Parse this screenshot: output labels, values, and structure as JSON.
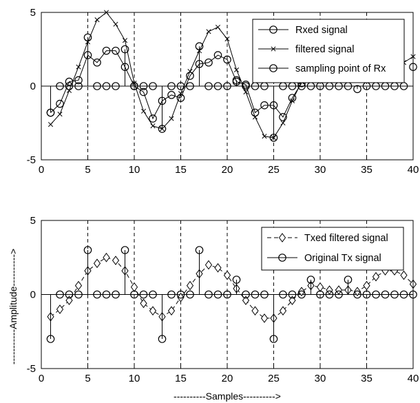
{
  "chart_data": [
    {
      "type": "line",
      "xlim": [
        0,
        40
      ],
      "ylim": [
        -5,
        5
      ],
      "xticks": [
        "0",
        "5",
        "10",
        "15",
        "20",
        "25",
        "30",
        "35",
        "40"
      ],
      "yticks": [
        "-5",
        "0",
        "5"
      ],
      "xlabel": "",
      "ylabel": "",
      "vertical_gridlines_at": [
        5,
        10,
        15,
        20,
        25,
        30,
        35
      ],
      "legend_position": "top-right",
      "series": [
        {
          "name": "Rxed signal",
          "style": "line-circle",
          "x": [
            1,
            2,
            3,
            4,
            5,
            6,
            7,
            8,
            9,
            10,
            11,
            12,
            13,
            14,
            15,
            16,
            17,
            18,
            19,
            20,
            21,
            22,
            23,
            24,
            25,
            26,
            27,
            28
          ],
          "y": [
            -1.8,
            -1.2,
            0.3,
            0.4,
            2.1,
            1.6,
            2.4,
            2.4,
            1.3,
            0.0,
            -0.4,
            -2.2,
            -1.0,
            -0.6,
            -0.8,
            0.7,
            1.5,
            1.6,
            2.1,
            1.8,
            0.3,
            0.1,
            -1.8,
            -1.3,
            -1.3,
            -2.1,
            -0.8,
            0.2
          ]
        },
        {
          "name": "filtered signal",
          "style": "line-x",
          "x": [
            1,
            2,
            3,
            4,
            5,
            6,
            7,
            8,
            9,
            10,
            11,
            12,
            13,
            14,
            15,
            16,
            17,
            18,
            19,
            20,
            21,
            22,
            23,
            24,
            25,
            26,
            27,
            28,
            29,
            30,
            31,
            32,
            33,
            34,
            35,
            36,
            37,
            38,
            39,
            40
          ],
          "y": [
            -2.6,
            -1.9,
            -0.3,
            1.3,
            3.0,
            4.5,
            5.0,
            4.2,
            3.1,
            0.2,
            -1.7,
            -2.7,
            -2.9,
            -2.2,
            -0.5,
            1.0,
            2.4,
            3.7,
            4.0,
            3.2,
            1.1,
            -0.4,
            -2.1,
            -3.4,
            -3.5,
            -2.5,
            -1.0,
            0.3,
            0.9,
            0.8,
            0.6,
            0.6,
            0.5,
            0.4,
            0.5,
            0.6,
            0.8,
            1.2,
            1.6,
            2.0
          ]
        },
        {
          "name": "sampling point of Rx",
          "style": "stem-circle",
          "x": [
            1,
            2,
            3,
            4,
            5,
            6,
            7,
            8,
            9,
            10,
            11,
            12,
            13,
            14,
            15,
            16,
            17,
            18,
            19,
            20,
            21,
            22,
            23,
            24,
            25,
            26,
            27,
            28,
            29,
            30,
            31,
            32,
            33,
            34,
            35,
            36,
            37,
            38,
            39,
            40
          ],
          "y": [
            -1.8,
            0,
            0,
            0,
            3.3,
            0,
            0,
            0,
            2.5,
            0,
            0,
            0,
            -2.9,
            0,
            0,
            0,
            2.7,
            0,
            0,
            0,
            0.4,
            0,
            0,
            0,
            -3.5,
            0,
            0,
            0,
            0,
            0,
            0,
            0,
            0,
            -0.2,
            0,
            0,
            0,
            0,
            0,
            1.3
          ]
        }
      ]
    },
    {
      "type": "line",
      "xlim": [
        0,
        40
      ],
      "ylim": [
        -5,
        5
      ],
      "xticks": [
        "0",
        "5",
        "10",
        "15",
        "20",
        "25",
        "30",
        "35",
        "40"
      ],
      "yticks": [
        "-5",
        "0",
        "5"
      ],
      "xlabel": "----------Samples---------->",
      "ylabel": "-----------Amplitude---------->",
      "vertical_gridlines_at": [
        5,
        10,
        15,
        20,
        25,
        30,
        35
      ],
      "legend_position": "top-right",
      "series": [
        {
          "name": "Txed filtered signal",
          "style": "dashed-diamond",
          "x": [
            1,
            2,
            3,
            4,
            5,
            6,
            7,
            8,
            9,
            10,
            11,
            12,
            13,
            14,
            15,
            16,
            17,
            18,
            19,
            20,
            21,
            22,
            23,
            24,
            25,
            26,
            27,
            28,
            29,
            30,
            31,
            32,
            33,
            34,
            35,
            36,
            37,
            38,
            39,
            40
          ],
          "y": [
            -1.5,
            -1.0,
            -0.4,
            0.6,
            1.6,
            2.1,
            2.5,
            2.3,
            1.6,
            0.5,
            -0.6,
            -1.1,
            -1.5,
            -1.1,
            -0.2,
            0.6,
            1.4,
            2.0,
            1.8,
            1.3,
            0.4,
            -0.4,
            -1.1,
            -1.6,
            -1.6,
            -1.1,
            -0.4,
            0.2,
            0.6,
            0.5,
            0.3,
            0.3,
            0.3,
            0.2,
            0.6,
            1.2,
            1.6,
            1.6,
            1.3,
            0.7
          ]
        },
        {
          "name": "Original Tx signal",
          "style": "stem-circle",
          "x": [
            1,
            2,
            3,
            4,
            5,
            6,
            7,
            8,
            9,
            10,
            11,
            12,
            13,
            14,
            15,
            16,
            17,
            18,
            19,
            20,
            21,
            22,
            23,
            24,
            25,
            26,
            27,
            28,
            29,
            30,
            31,
            32,
            33,
            34,
            35,
            36,
            37,
            38,
            39,
            40
          ],
          "y": [
            -3,
            0,
            0,
            0,
            3,
            0,
            0,
            0,
            3,
            0,
            0,
            0,
            -3,
            0,
            0,
            0,
            3,
            0,
            0,
            0,
            1,
            0,
            0,
            0,
            -3,
            0,
            0,
            0,
            1,
            0,
            0,
            0,
            1,
            0,
            0,
            0,
            0,
            0,
            0,
            0
          ]
        }
      ]
    }
  ]
}
